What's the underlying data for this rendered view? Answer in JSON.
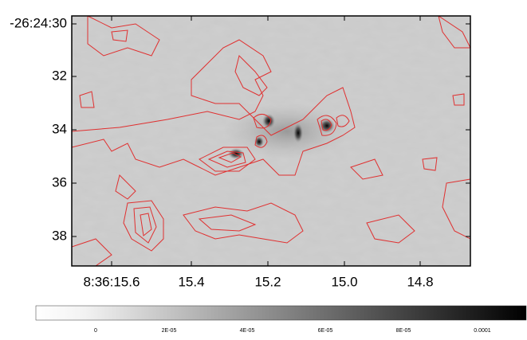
{
  "axes": {
    "y_tick_labels": [
      "-26:24:30",
      "32",
      "34",
      "36",
      "38"
    ],
    "x_tick_labels": [
      "8:36:15.6",
      "15.4",
      "15.2",
      "15.0",
      "14.8"
    ]
  },
  "colorbar": {
    "tick_labels": [
      "0",
      "2E-05",
      "4E-05",
      "6E-05",
      "8E-05",
      "0.0001"
    ]
  }
}
